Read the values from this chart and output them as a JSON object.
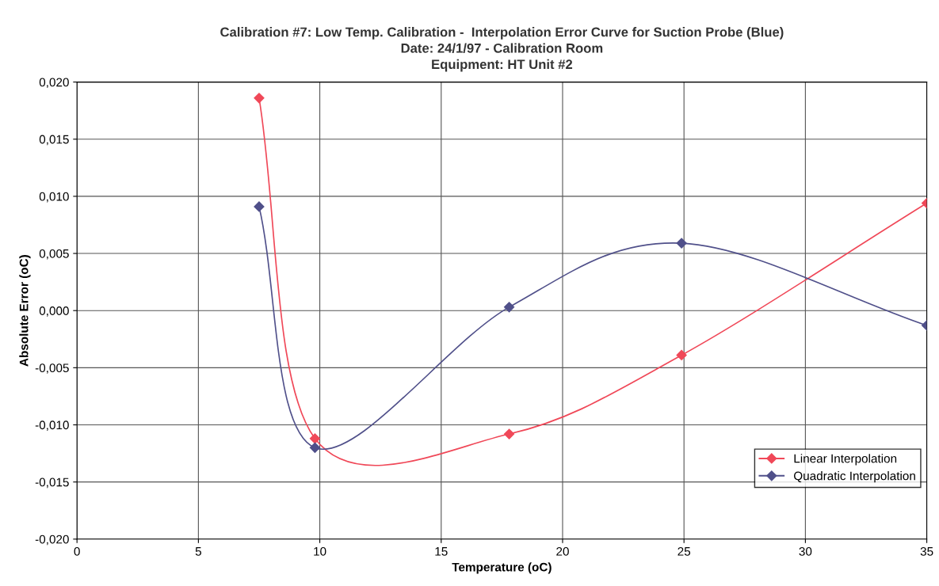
{
  "chart_data": {
    "type": "line",
    "title": "Calibration #7: Low Temp. Calibration -  Interpolation Error Curve for Suction Probe (Blue)\nDate: 24/1/97 - Calibration Room\nEquipment: HT Unit #2",
    "xlabel": "Temperature (oC)",
    "ylabel": "Absolute Error (oC)",
    "x": [
      7.5,
      9.8,
      17.8,
      24.9,
      35
    ],
    "series": [
      {
        "name": "Linear Interpolation",
        "color": "#f04858",
        "values": [
          0.0186,
          -0.0112,
          -0.0108,
          -0.0039,
          0.0094
        ]
      },
      {
        "name": "Quadratic Interpolation",
        "color": "#50508a",
        "values": [
          0.0091,
          -0.012,
          0.0003,
          0.0059,
          -0.0013
        ]
      }
    ],
    "xlim": [
      0,
      35
    ],
    "xticks": [
      0,
      5,
      10,
      15,
      20,
      25,
      30,
      35
    ],
    "ylim": [
      -0.02,
      0.02
    ],
    "yticks": [
      {
        "value": -0.02,
        "label": "-0,020"
      },
      {
        "value": -0.015,
        "label": "-0,015"
      },
      {
        "value": -0.01,
        "label": "-0,010"
      },
      {
        "value": -0.005,
        "label": "-0,005"
      },
      {
        "value": 0,
        "label": "0,000"
      },
      {
        "value": 0.005,
        "label": "0,005"
      },
      {
        "value": 0.01,
        "label": "0,010"
      },
      {
        "value": 0.015,
        "label": "0,015"
      },
      {
        "value": 0.02,
        "label": "0,020"
      }
    ],
    "grid": true,
    "legend": "bottom right",
    "marker": "diamond",
    "line_style": "solid"
  }
}
